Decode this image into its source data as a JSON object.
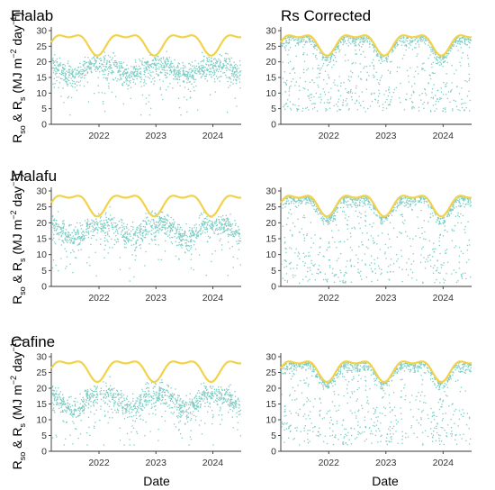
{
  "figure": {
    "x_axis_label": "Date",
    "y_axis_label": {
      "line1": [
        "R",
        "so",
        " & R",
        "s"
      ],
      "line2": [
        "(MJ m",
        "−2",
        " day",
        "−1",
        ")"
      ]
    }
  },
  "colors": {
    "rso_line": "#F2D24A",
    "rs_points": "#7ECDC4",
    "axis": "#333333"
  },
  "chart_data": [
    {
      "type": "scatter",
      "title": "Elalab",
      "x_range": [
        "2021-03-01",
        "2024-07-01"
      ],
      "ylim": [
        0,
        30
      ],
      "yticks": [
        0,
        5,
        10,
        15,
        20,
        25,
        30
      ],
      "xticks": [
        "2022",
        "2023",
        "2024"
      ],
      "grid": false,
      "series": [
        {
          "name": "Rso",
          "render": "line",
          "min": 22,
          "max": 28.5,
          "peak_months": [
            3,
            9
          ]
        },
        {
          "name": "Rs",
          "render": "points",
          "n": 1100,
          "seasonal_low_month": 7,
          "dry_season_mean": 19,
          "wet_season_mean": 15.5,
          "min": 3,
          "max": 26
        }
      ]
    },
    {
      "type": "scatter",
      "title": "Rs Corrected",
      "x_range": [
        "2021-03-01",
        "2024-07-01"
      ],
      "ylim": [
        0,
        30
      ],
      "yticks": [
        0,
        5,
        10,
        15,
        20,
        25,
        30
      ],
      "xticks": [
        "2022",
        "2023",
        "2024"
      ],
      "grid": false,
      "series": [
        {
          "name": "Rso",
          "render": "line",
          "min": 22,
          "max": 28.5,
          "peak_months": [
            3,
            9
          ]
        },
        {
          "name": "Rs",
          "render": "points",
          "n": 1100,
          "corrected": true,
          "min": 4,
          "max": 29
        }
      ]
    },
    {
      "type": "scatter",
      "title": "Malafu",
      "x_range": [
        "2021-03-01",
        "2024-07-01"
      ],
      "ylim": [
        0,
        30
      ],
      "yticks": [
        0,
        5,
        10,
        15,
        20,
        25,
        30
      ],
      "xticks": [
        "2022",
        "2023",
        "2024"
      ],
      "grid": false,
      "series": [
        {
          "name": "Rso",
          "render": "line",
          "min": 22,
          "max": 28.5,
          "peak_months": [
            3,
            9
          ]
        },
        {
          "name": "Rs",
          "render": "points",
          "n": 1100,
          "seasonal_low_month": 7,
          "dry_season_mean": 19.5,
          "wet_season_mean": 15,
          "min": 1,
          "max": 25
        }
      ]
    },
    {
      "type": "scatter",
      "title": "",
      "x_range": [
        "2021-03-01",
        "2024-07-01"
      ],
      "ylim": [
        0,
        30
      ],
      "yticks": [
        0,
        5,
        10,
        15,
        20,
        25,
        30
      ],
      "xticks": [
        "2022",
        "2023",
        "2024"
      ],
      "grid": false,
      "series": [
        {
          "name": "Rso",
          "render": "line",
          "min": 22,
          "max": 28.5,
          "peak_months": [
            3,
            9
          ]
        },
        {
          "name": "Rs",
          "render": "points",
          "n": 1100,
          "corrected": true,
          "min": 1,
          "max": 29
        }
      ]
    },
    {
      "type": "scatter",
      "title": "Cafine",
      "x_range": [
        "2021-03-01",
        "2024-07-01"
      ],
      "ylim": [
        0,
        30
      ],
      "yticks": [
        0,
        5,
        10,
        15,
        20,
        25,
        30
      ],
      "xticks": [
        "2022",
        "2023",
        "2024"
      ],
      "grid": false,
      "series": [
        {
          "name": "Rso",
          "render": "line",
          "min": 22,
          "max": 28.5,
          "peak_months": [
            3,
            9
          ]
        },
        {
          "name": "Rs",
          "render": "points",
          "n": 1100,
          "seasonal_low_month": 7,
          "dry_season_mean": 18,
          "wet_season_mean": 13,
          "min": 2,
          "max": 24
        }
      ]
    },
    {
      "type": "scatter",
      "title": "",
      "x_range": [
        "2021-03-01",
        "2024-07-01"
      ],
      "ylim": [
        0,
        30
      ],
      "yticks": [
        0,
        5,
        10,
        15,
        20,
        25,
        30
      ],
      "xticks": [
        "2022",
        "2023",
        "2024"
      ],
      "grid": false,
      "series": [
        {
          "name": "Rso",
          "render": "line",
          "min": 22,
          "max": 28.5,
          "peak_months": [
            3,
            9
          ]
        },
        {
          "name": "Rs",
          "render": "points",
          "n": 1100,
          "corrected": true,
          "min": 2,
          "max": 29
        }
      ]
    }
  ]
}
